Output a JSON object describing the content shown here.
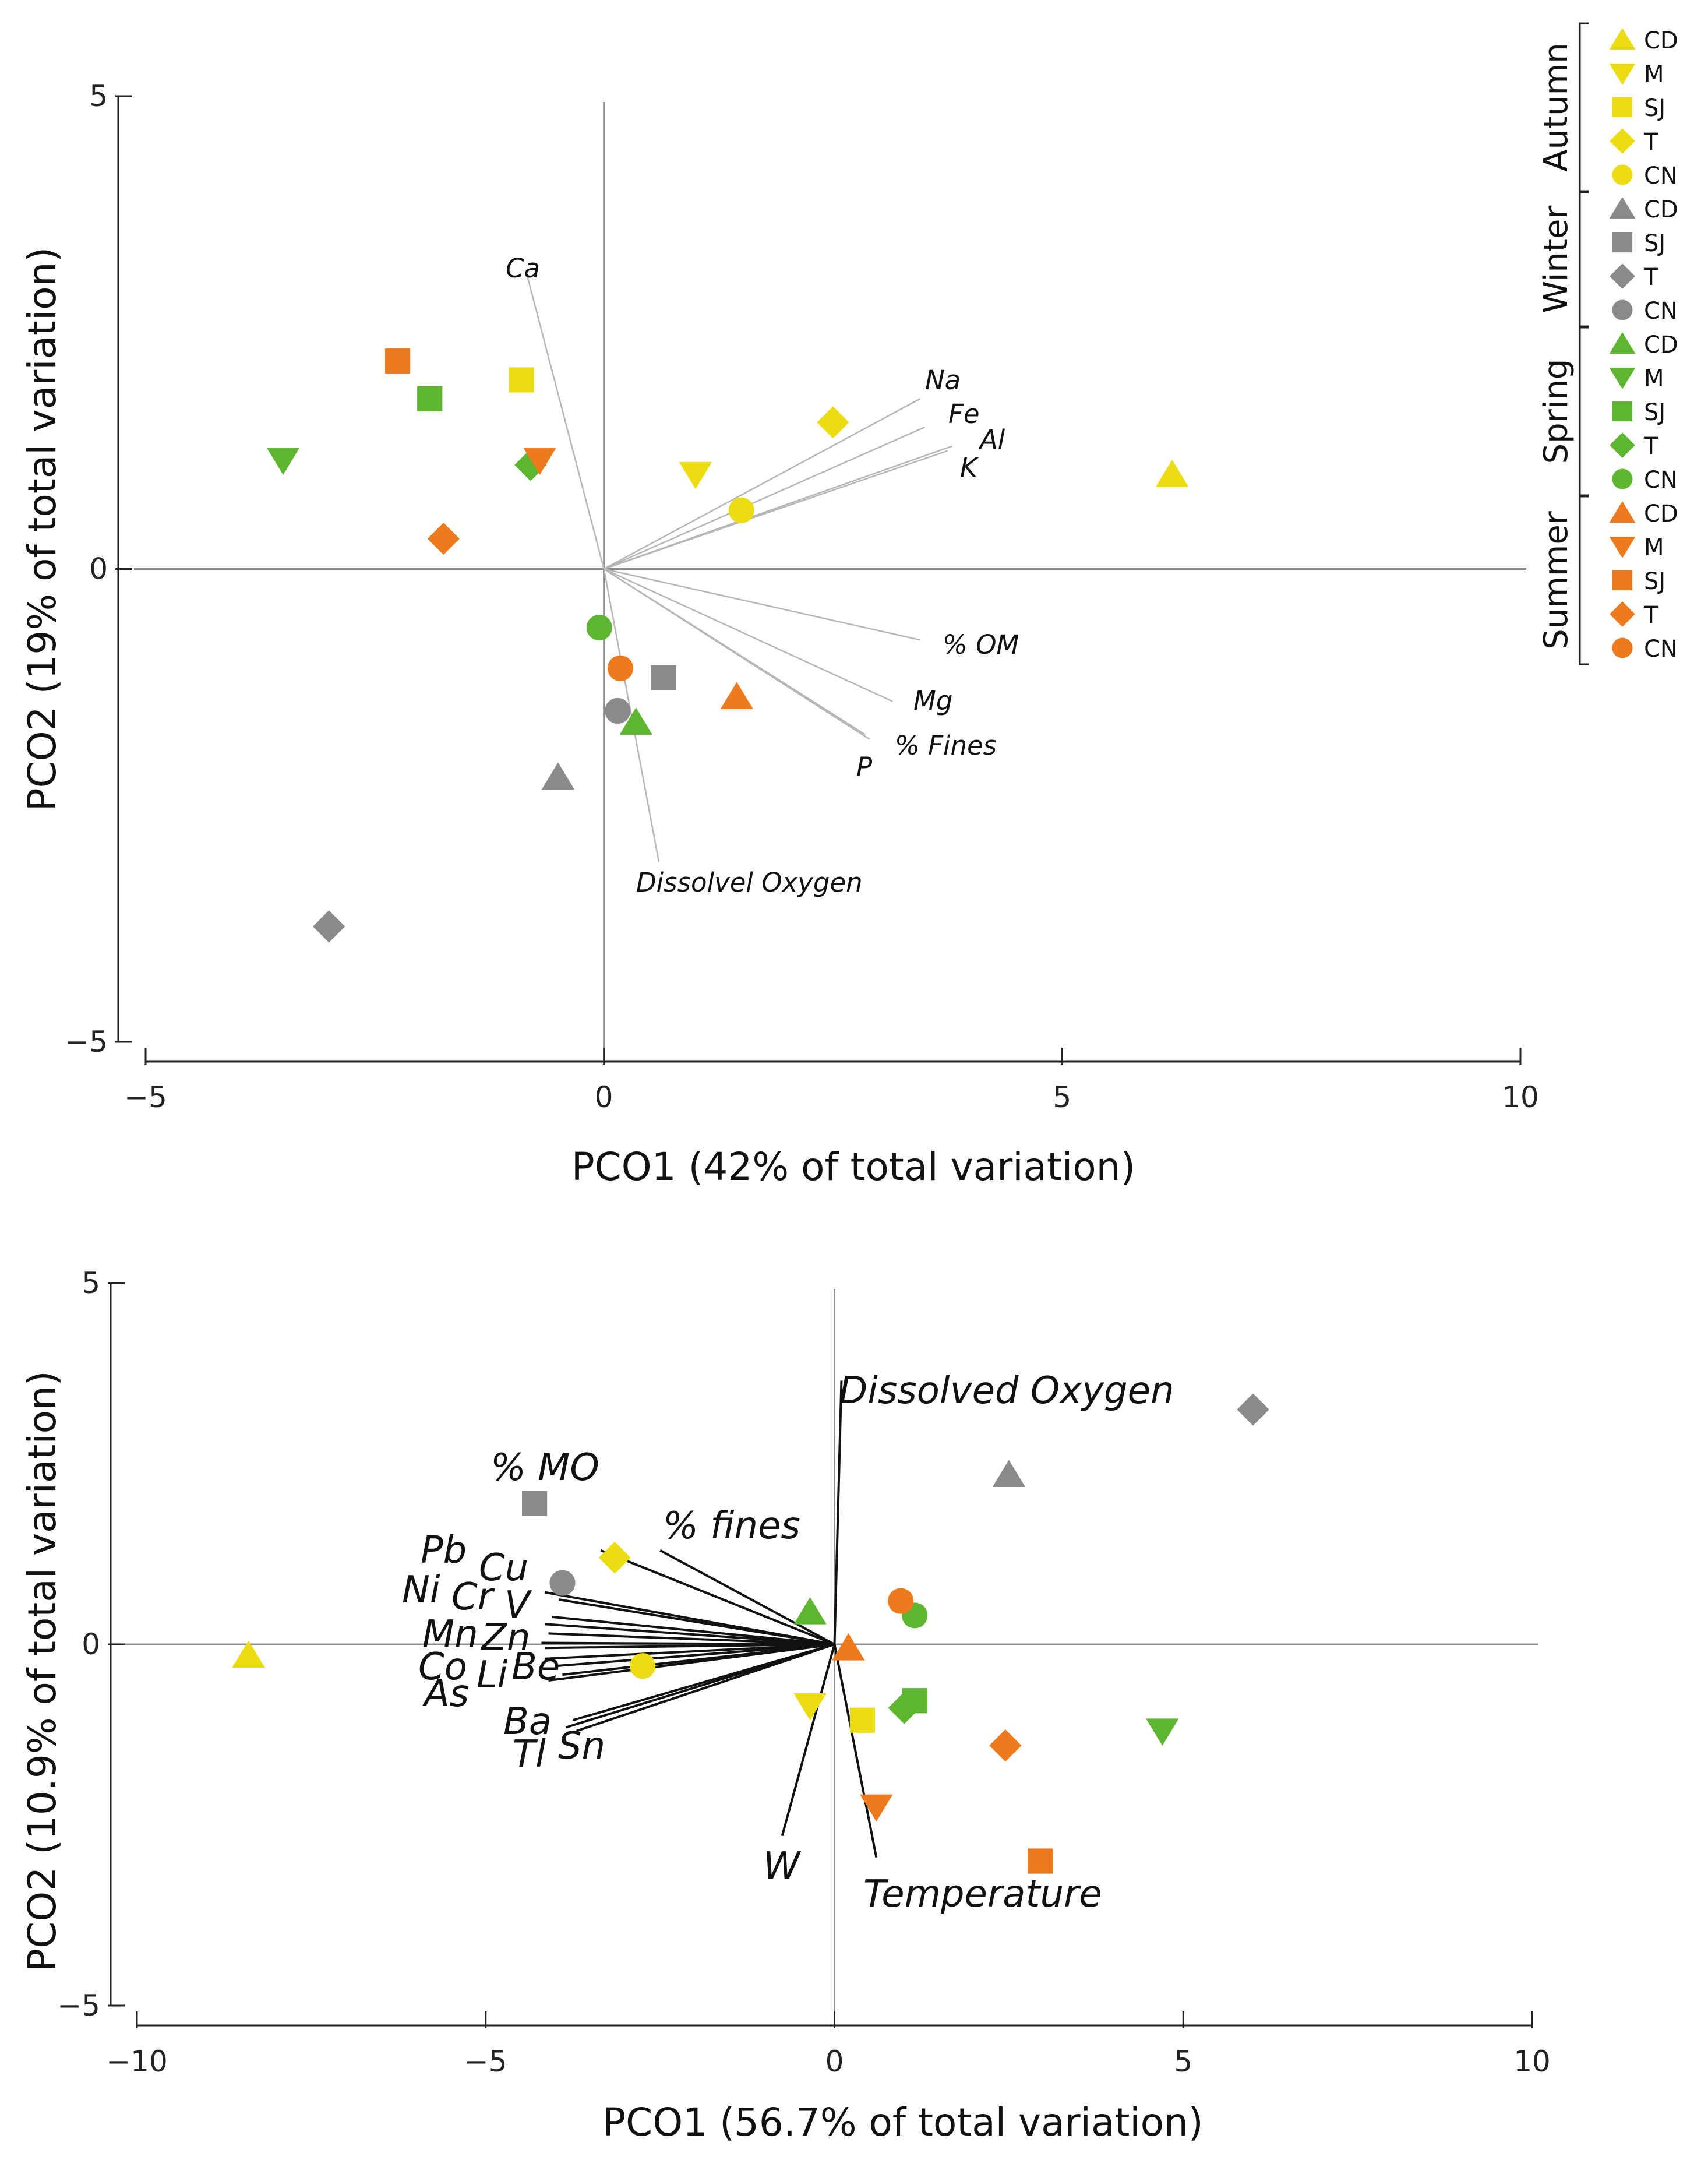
{
  "colors": {
    "autumn": "#ecdd12",
    "winter": "#8a8a8a",
    "spring": "#5db530",
    "summer": "#ee7a1e"
  },
  "chart_data": [
    {
      "type": "scatter",
      "title": "",
      "xlabel": "PCO1 (42% of total variation)",
      "ylabel": "PCO2 (19% of total variation)",
      "xlim": [
        -5,
        10
      ],
      "ylim": [
        -5,
        5
      ],
      "xticks": [
        {
          "v": -5,
          "label": "−5"
        },
        {
          "v": 0,
          "label": "0"
        },
        {
          "v": 5,
          "label": "5"
        },
        {
          "v": 10,
          "label": "10"
        }
      ],
      "yticks": [
        {
          "v": -5,
          "label": "−5"
        },
        {
          "v": 0,
          "label": "0"
        },
        {
          "v": 5,
          "label": "5"
        }
      ],
      "points": [
        {
          "season": "autumn",
          "site": "CD",
          "x": 6.2,
          "y": 1.0
        },
        {
          "season": "autumn",
          "site": "M",
          "x": 1.0,
          "y": 1.0
        },
        {
          "season": "autumn",
          "site": "SJ",
          "x": -0.9,
          "y": 2.0
        },
        {
          "season": "autumn",
          "site": "T",
          "x": 2.5,
          "y": 1.55
        },
        {
          "season": "autumn",
          "site": "CN",
          "x": 1.5,
          "y": 0.62
        },
        {
          "season": "winter",
          "site": "CD",
          "x": -0.5,
          "y": -2.2
        },
        {
          "season": "winter",
          "site": "SJ",
          "x": 0.65,
          "y": -1.15
        },
        {
          "season": "winter",
          "site": "T",
          "x": -3.0,
          "y": -3.78
        },
        {
          "season": "winter",
          "site": "CN",
          "x": 0.15,
          "y": -1.5
        },
        {
          "season": "spring",
          "site": "CD",
          "x": 0.35,
          "y": -1.62
        },
        {
          "season": "spring",
          "site": "M",
          "x": -3.5,
          "y": 1.15
        },
        {
          "season": "spring",
          "site": "SJ",
          "x": -1.9,
          "y": 1.8
        },
        {
          "season": "spring",
          "site": "T",
          "x": -0.8,
          "y": 1.1
        },
        {
          "season": "spring",
          "site": "CN",
          "x": -0.05,
          "y": -0.62
        },
        {
          "season": "summer",
          "site": "CD",
          "x": 1.45,
          "y": -1.35
        },
        {
          "season": "summer",
          "site": "M",
          "x": -0.7,
          "y": 1.15
        },
        {
          "season": "summer",
          "site": "SJ",
          "x": -2.25,
          "y": 2.2
        },
        {
          "season": "summer",
          "site": "T",
          "x": -1.75,
          "y": 0.32
        },
        {
          "season": "summer",
          "site": "CN",
          "x": 0.18,
          "y": -1.05
        }
      ],
      "vectors": [
        {
          "label": "Ca",
          "x": -0.85,
          "y": 3.15
        },
        {
          "label": "Na",
          "x": 3.45,
          "y": 1.8
        },
        {
          "label": "Fe",
          "x": 3.5,
          "y": 1.5
        },
        {
          "label": "Al",
          "x": 3.8,
          "y": 1.3
        },
        {
          "label": "K",
          "x": 3.75,
          "y": 1.25
        },
        {
          "label": "% OM",
          "x": 3.45,
          "y": -0.75
        },
        {
          "label": "Mg",
          "x": 3.15,
          "y": -1.4
        },
        {
          "label": "% Fines",
          "x": 2.9,
          "y": -1.8
        },
        {
          "label": "P",
          "x": 2.85,
          "y": -1.75
        },
        {
          "label": "Dissolvel Oxygen",
          "x": 0.6,
          "y": -3.1
        }
      ]
    },
    {
      "type": "scatter",
      "title": "",
      "xlabel": "PCO1 (56.7% of total variation)",
      "ylabel": "PCO2 (10.9% of total variation)",
      "xlim": [
        -10,
        10
      ],
      "ylim": [
        -5,
        5
      ],
      "xticks": [
        {
          "v": -10,
          "label": "−10"
        },
        {
          "v": -5,
          "label": "−5"
        },
        {
          "v": 0,
          "label": "0"
        },
        {
          "v": 5,
          "label": "5"
        },
        {
          "v": 10,
          "label": "10"
        }
      ],
      "yticks": [
        {
          "v": -5,
          "label": "−5"
        },
        {
          "v": 0,
          "label": "0"
        },
        {
          "v": 5,
          "label": "5"
        }
      ],
      "points": [
        {
          "season": "autumn",
          "site": "CD",
          "x": -8.4,
          "y": -0.15
        },
        {
          "season": "autumn",
          "site": "M",
          "x": -0.35,
          "y": -0.85
        },
        {
          "season": "autumn",
          "site": "SJ",
          "x": 0.4,
          "y": -1.05
        },
        {
          "season": "autumn",
          "site": "T",
          "x": -3.15,
          "y": 1.2
        },
        {
          "season": "autumn",
          "site": "CN",
          "x": -2.75,
          "y": -0.3
        },
        {
          "season": "winter",
          "site": "CD",
          "x": 2.5,
          "y": 2.35
        },
        {
          "season": "winter",
          "site": "SJ",
          "x": -4.3,
          "y": 1.95
        },
        {
          "season": "winter",
          "site": "T",
          "x": 6.0,
          "y": 3.25
        },
        {
          "season": "winter",
          "site": "CN",
          "x": -3.9,
          "y": 0.85
        },
        {
          "season": "spring",
          "site": "CD",
          "x": -0.35,
          "y": 0.45
        },
        {
          "season": "spring",
          "site": "M",
          "x": 4.7,
          "y": -1.2
        },
        {
          "season": "spring",
          "site": "SJ",
          "x": 1.15,
          "y": -0.78
        },
        {
          "season": "spring",
          "site": "T",
          "x": 1.0,
          "y": -0.88
        },
        {
          "season": "spring",
          "site": "CN",
          "x": 1.15,
          "y": 0.4
        },
        {
          "season": "summer",
          "site": "CD",
          "x": 0.2,
          "y": -0.05
        },
        {
          "season": "summer",
          "site": "M",
          "x": 0.6,
          "y": -2.25
        },
        {
          "season": "summer",
          "site": "SJ",
          "x": 2.95,
          "y": -3.0
        },
        {
          "season": "summer",
          "site": "T",
          "x": 2.45,
          "y": -1.4
        },
        {
          "season": "summer",
          "site": "CN",
          "x": 0.95,
          "y": 0.6
        }
      ],
      "vectors": [
        {
          "label": "Dissolved Oxygen",
          "x": 0.1,
          "y": 3.65
        },
        {
          "label": "% MO",
          "x": -3.35,
          "y": 1.3
        },
        {
          "label": "% fines",
          "x": -2.5,
          "y": 1.3
        },
        {
          "label": "Pb",
          "x": -4.15,
          "y": 0.72
        },
        {
          "label": "Cu",
          "x": -3.95,
          "y": 0.62
        },
        {
          "label": "Ni",
          "x": -4.05,
          "y": 0.38
        },
        {
          "label": "Cr",
          "x": -4.15,
          "y": 0.28
        },
        {
          "label": "V",
          "x": -4.1,
          "y": 0.15
        },
        {
          "label": "Mn",
          "x": -4.2,
          "y": 0.02
        },
        {
          "label": "Zn",
          "x": -4.15,
          "y": -0.05
        },
        {
          "label": "Co",
          "x": -4.15,
          "y": -0.2
        },
        {
          "label": "Li",
          "x": -4.0,
          "y": -0.3
        },
        {
          "label": "Be",
          "x": -3.9,
          "y": -0.42
        },
        {
          "label": "As",
          "x": -4.1,
          "y": -0.5
        },
        {
          "label": "Ba",
          "x": -3.75,
          "y": -1.05
        },
        {
          "label": "Tl",
          "x": -3.85,
          "y": -1.15
        },
        {
          "label": "Sn",
          "x": -3.7,
          "y": -1.2
        },
        {
          "label": "W",
          "x": -0.75,
          "y": -2.65
        },
        {
          "label": "Temperature",
          "x": 0.6,
          "y": -2.95
        }
      ]
    }
  ],
  "legend": {
    "position": "top-right",
    "groups": [
      {
        "season": "autumn",
        "label": "Autumn",
        "items": [
          {
            "shape": "triangle-up",
            "label": "CD"
          },
          {
            "shape": "triangle-down",
            "label": "M"
          },
          {
            "shape": "square",
            "label": "SJ"
          },
          {
            "shape": "diamond",
            "label": "T"
          },
          {
            "shape": "circle",
            "label": "CN"
          }
        ]
      },
      {
        "season": "winter",
        "label": "Winter",
        "items": [
          {
            "shape": "triangle-up",
            "label": "CD"
          },
          {
            "shape": "square",
            "label": "SJ"
          },
          {
            "shape": "diamond",
            "label": "T"
          },
          {
            "shape": "circle",
            "label": "CN"
          }
        ]
      },
      {
        "season": "spring",
        "label": "Spring",
        "items": [
          {
            "shape": "triangle-up",
            "label": "CD"
          },
          {
            "shape": "triangle-down",
            "label": "M"
          },
          {
            "shape": "square",
            "label": "SJ"
          },
          {
            "shape": "diamond",
            "label": "T"
          },
          {
            "shape": "circle",
            "label": "CN"
          }
        ]
      },
      {
        "season": "summer",
        "label": "Summer",
        "items": [
          {
            "shape": "triangle-up",
            "label": "CD"
          },
          {
            "shape": "triangle-down",
            "label": "M"
          },
          {
            "shape": "square",
            "label": "SJ"
          },
          {
            "shape": "diamond",
            "label": "T"
          },
          {
            "shape": "circle",
            "label": "CN"
          }
        ]
      }
    ]
  },
  "site_shapes": {
    "CD": "triangle-up",
    "M": "triangle-down",
    "SJ": "square",
    "T": "diamond",
    "CN": "circle"
  }
}
